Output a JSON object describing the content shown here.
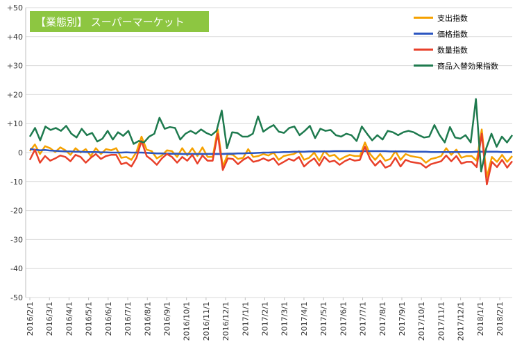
{
  "chart_data": {
    "type": "line",
    "title": "【業態別】 スーパーマーケット",
    "y_ticks": [
      "+50",
      "+40",
      "+30",
      "+20",
      "+10",
      "0",
      "-10",
      "-20",
      "-30",
      "-40",
      "-50"
    ],
    "ylim": [
      -50,
      50
    ],
    "x_tick_labels": [
      "2016/2/1",
      "2016/3/1",
      "2016/4/1",
      "2016/5/1",
      "2016/6/1",
      "2016/7/1",
      "2016/8/1",
      "2016/9/1",
      "2016/10/1",
      "2016/11/1",
      "2016/12/1",
      "2017/1/1",
      "2017/2/1",
      "2017/3/1",
      "2017/4/1",
      "2017/5/1",
      "2017/6/1",
      "2017/7/1",
      "2017/8/1",
      "2017/9/1",
      "2017/10/1",
      "2017/11/1",
      "2017/12/1",
      "2018/1/1",
      "2018/2/1"
    ],
    "x_start": "2016-02-01",
    "x_end": "2018-02-26",
    "points_per_month": 4.3,
    "grid": true,
    "legend_position": "top-right",
    "series": [
      {
        "name": "支出指数",
        "color": "#f5a100",
        "values": [
          0.5,
          2.8,
          -0.5,
          2.2,
          1.5,
          0.2,
          1.8,
          0.8,
          -0.8,
          1.5,
          0,
          1.2,
          -1.2,
          1.5,
          -0.5,
          1.2,
          0.8,
          1.5,
          -1.8,
          -1.5,
          -2.5,
          0.2,
          5.5,
          1,
          0.5,
          -2,
          -1,
          0.8,
          0.5,
          -1.5,
          1.5,
          -1,
          1.5,
          -1.2,
          1.8,
          -1.5,
          -1.5,
          8,
          -4.8,
          -0.5,
          -0.8,
          -2.2,
          -1.8,
          1.2,
          -1.5,
          -1.2,
          -0.5,
          -1,
          0,
          -2.5,
          -1.2,
          -0.8,
          -0.5,
          0.5,
          -2.5,
          -1.8,
          0,
          -2.8,
          0.5,
          -1.2,
          -0.8,
          -2.5,
          -1.5,
          -0.8,
          -1.2,
          -1.2,
          3.5,
          -0.5,
          -2.5,
          -0.5,
          -2.8,
          -2.2,
          0.5,
          -2.5,
          -0.5,
          -1.2,
          -1.5,
          -1.8,
          -3.5,
          -2.2,
          -1.8,
          -1.2,
          1.5,
          -0.8,
          1,
          -1.8,
          -1.2,
          -1.2,
          -2.8,
          8,
          -8.5,
          -1.5,
          -3.2,
          -0.8,
          -3.2,
          -1.2
        ]
      },
      {
        "name": "価格指数",
        "color": "#2b55c0",
        "values": [
          1.2,
          1,
          0.8,
          0.9,
          0.7,
          0.6,
          0.5,
          0.4,
          0.4,
          0.3,
          0.3,
          0.2,
          0.2,
          0.2,
          0.1,
          0.1,
          0,
          0,
          0,
          0.1,
          0,
          0,
          0,
          -0.1,
          -0.2,
          -0.3,
          -0.3,
          -0.4,
          -0.4,
          -0.4,
          -0.5,
          -0.5,
          -0.5,
          -0.5,
          -0.5,
          -0.5,
          -0.5,
          -0.5,
          -0.5,
          -0.4,
          -0.4,
          -0.3,
          -0.3,
          -0.2,
          -0.2,
          -0.1,
          0,
          0,
          0.1,
          0.1,
          0.2,
          0.2,
          0.3,
          0.3,
          0.3,
          0.4,
          0.4,
          0.4,
          0.4,
          0.4,
          0.5,
          0.5,
          0.5,
          0.5,
          0.5,
          0.5,
          0.5,
          0.5,
          0.5,
          0.5,
          0.5,
          0.4,
          0.4,
          0.4,
          0.4,
          0.3,
          0.3,
          0.3,
          0.3,
          0.2,
          0.2,
          0.2,
          0.2,
          0.2,
          0.2,
          0.2,
          0.2,
          0.2,
          0.3,
          0.3,
          0.3,
          0.3,
          0.3,
          0.2,
          0.2,
          0.2
        ]
      },
      {
        "name": "数量指数",
        "color": "#e8402a",
        "values": [
          -2.5,
          1,
          -3.5,
          -1.2,
          -2.8,
          -2,
          -1,
          -1.5,
          -3,
          -0.8,
          -1.5,
          -3.5,
          -1.8,
          -0.5,
          -2.2,
          -1.2,
          -0.8,
          -0.8,
          -4,
          -3.5,
          -4.8,
          -1.8,
          4,
          -1.2,
          -2.5,
          -4.2,
          -2,
          -0.5,
          -1.5,
          -3.5,
          -1.5,
          -2.8,
          -0.8,
          -3.8,
          -1,
          -2.8,
          -2.8,
          6.5,
          -6,
          -2,
          -2.2,
          -4,
          -2.5,
          -1.5,
          -3.2,
          -2.8,
          -2,
          -2.8,
          -2,
          -4.2,
          -3.2,
          -2.2,
          -2.8,
          -1.5,
          -4.8,
          -3.2,
          -2,
          -4.5,
          -1.5,
          -3.2,
          -2.8,
          -4.2,
          -3,
          -2.2,
          -2.8,
          -2.5,
          2,
          -2.2,
          -4.5,
          -2.8,
          -5.2,
          -4.5,
          -1.8,
          -4.8,
          -2.5,
          -3.2,
          -3.5,
          -3.8,
          -5.2,
          -4,
          -3.5,
          -3,
          -1,
          -3,
          -1.2,
          -3.8,
          -3.2,
          -3.2,
          -5,
          6.5,
          -11,
          -3.2,
          -5,
          -2.5,
          -5.2,
          -3
        ]
      },
      {
        "name": "商品入替効果指数",
        "color": "#1e7a4e",
        "values": [
          5.5,
          8.5,
          4.2,
          9,
          7.8,
          8.5,
          7.5,
          9.2,
          6.5,
          5.2,
          8.2,
          6,
          6.8,
          3.8,
          4.8,
          7.5,
          4.5,
          7,
          5.8,
          7.5,
          3,
          4,
          3.5,
          5.5,
          6.5,
          12,
          8.2,
          8.8,
          8.5,
          4.5,
          6.5,
          7.5,
          6.5,
          8,
          6.8,
          6,
          7.5,
          14.5,
          1.5,
          7,
          6.8,
          5.5,
          5.5,
          6.5,
          12.5,
          7.2,
          8.5,
          9.5,
          7.2,
          6.8,
          8.5,
          9,
          6,
          7.5,
          9.2,
          5,
          8.2,
          7.5,
          7.8,
          6,
          5.5,
          6.5,
          6,
          4,
          9,
          6.5,
          4.2,
          6,
          4.5,
          7.5,
          7,
          6,
          7,
          7.5,
          7,
          6,
          5.2,
          5.5,
          9.5,
          6,
          3.5,
          8.8,
          5.2,
          4.8,
          6,
          3.5,
          18.5,
          -6.5,
          1.5,
          6.5,
          2,
          5.5,
          3.5,
          6
        ]
      }
    ]
  }
}
